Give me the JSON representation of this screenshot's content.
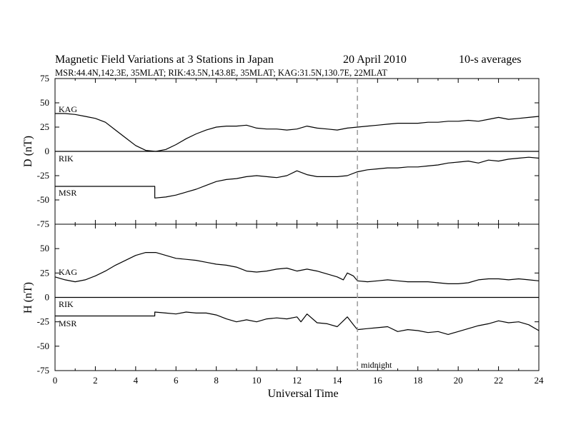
{
  "header": {
    "title": "Magnetic Field Variations at 3 Stations in Japan",
    "date": "20 April    2010",
    "averaging": "10-s averages",
    "stations_line": "MSR:44.4N,142.3E, 35MLAT;  RIK:43.5N,143.8E, 35MLAT;  KAG:31.5N,130.7E, 22MLAT"
  },
  "chart_data": [
    {
      "type": "line",
      "panel": "D",
      "ylabel": "D (nT)",
      "xlim": [
        0,
        24
      ],
      "ylim": [
        -75,
        75
      ],
      "yticks": [
        75,
        50,
        25,
        0,
        -25,
        -50,
        -75
      ],
      "ytick_labels": [
        "75",
        "50",
        "25",
        "0",
        "-25",
        "-50",
        "-75"
      ],
      "reference_line": 0,
      "series": [
        {
          "name": "KAG",
          "x": [
            0,
            0.5,
            1,
            1.5,
            2,
            2.5,
            3,
            3.5,
            4,
            4.5,
            5,
            5.5,
            6,
            6.5,
            7,
            7.5,
            8,
            8.5,
            9,
            9.5,
            10,
            10.5,
            11,
            11.5,
            12,
            12.5,
            13,
            13.5,
            14,
            14.5,
            15,
            15.5,
            16,
            16.5,
            17,
            17.5,
            18,
            18.5,
            19,
            19.5,
            20,
            20.5,
            21,
            21.5,
            22,
            22.5,
            23,
            23.5,
            24
          ],
          "y": [
            39,
            39,
            38,
            36,
            34,
            30,
            22,
            14,
            6,
            1,
            0,
            2,
            7,
            13,
            18,
            22,
            25,
            26,
            26,
            27,
            24,
            23,
            23,
            22,
            23,
            26,
            24,
            23,
            22,
            24,
            25,
            26,
            27,
            28,
            29,
            29,
            29,
            30,
            30,
            31,
            31,
            32,
            31,
            33,
            35,
            33,
            34,
            35,
            36
          ]
        },
        {
          "name": "RIK",
          "x": [
            0,
            24
          ],
          "y": [
            0,
            0
          ]
        },
        {
          "name": "MSR",
          "x": [
            0,
            4.95,
            4.95,
            5.5,
            6,
            6.5,
            7,
            7.5,
            8,
            8.5,
            9,
            9.5,
            10,
            10.5,
            11,
            11.5,
            12,
            12.5,
            13,
            13.5,
            14,
            14.5,
            15,
            15.5,
            16,
            16.5,
            17,
            17.5,
            18,
            18.5,
            19,
            19.5,
            20,
            20.5,
            21,
            21.5,
            22,
            22.5,
            23,
            23.5,
            24
          ],
          "y": [
            -36,
            -36,
            -48,
            -47,
            -45,
            -42,
            -39,
            -35,
            -31,
            -29,
            -28,
            -26,
            -25,
            -26,
            -27,
            -25,
            -20,
            -24,
            -26,
            -26,
            -26,
            -25,
            -21,
            -19,
            -18,
            -17,
            -17,
            -16,
            -16,
            -15,
            -14,
            -12,
            -11,
            -10,
            -12,
            -9,
            -10,
            -8,
            -7,
            -6,
            -7
          ]
        }
      ]
    },
    {
      "type": "line",
      "panel": "H",
      "ylabel": "H (nT)",
      "xlabel": "Universal Time",
      "xlim": [
        0,
        24
      ],
      "ylim": [
        -75,
        75
      ],
      "xticks": [
        0,
        2,
        4,
        6,
        8,
        10,
        12,
        14,
        16,
        18,
        20,
        22,
        24
      ],
      "xtick_labels": [
        "0",
        "2",
        "4",
        "6",
        "8",
        "10",
        "12",
        "14",
        "16",
        "18",
        "20",
        "22",
        "24"
      ],
      "yticks": [
        50,
        25,
        0,
        -25,
        -50,
        -75
      ],
      "ytick_labels": [
        "50",
        "25",
        "0",
        "-25",
        "-50",
        "-75"
      ],
      "reference_line": 0,
      "series": [
        {
          "name": "KAG",
          "x": [
            0,
            0.5,
            1,
            1.5,
            2,
            2.5,
            3,
            3.5,
            4,
            4.5,
            5,
            5.5,
            6,
            6.5,
            7,
            7.5,
            8,
            8.5,
            9,
            9.5,
            10,
            10.5,
            11,
            11.5,
            12,
            12.5,
            13,
            13.5,
            14,
            14.3,
            14.5,
            14.8,
            15,
            15.5,
            16,
            16.5,
            17,
            17.5,
            18,
            18.5,
            19,
            19.5,
            20,
            20.5,
            21,
            21.5,
            22,
            22.5,
            23,
            23.5,
            24
          ],
          "y": [
            21,
            18,
            16,
            18,
            22,
            27,
            33,
            38,
            43,
            46,
            46,
            43,
            40,
            39,
            38,
            36,
            34,
            33,
            31,
            27,
            26,
            27,
            29,
            30,
            27,
            29,
            27,
            24,
            21,
            18,
            25,
            22,
            17,
            16,
            17,
            18,
            17,
            16,
            16,
            16,
            15,
            14,
            14,
            15,
            18,
            19,
            19,
            18,
            19,
            18,
            17
          ]
        },
        {
          "name": "RIK",
          "x": [
            0,
            24
          ],
          "y": [
            0,
            0
          ]
        },
        {
          "name": "MSR",
          "x": [
            0,
            4.95,
            4.95,
            5.5,
            6,
            6.5,
            7,
            7.5,
            8,
            8.5,
            9,
            9.5,
            10,
            10.5,
            11,
            11.5,
            12,
            12.2,
            12.5,
            13,
            13.5,
            14,
            14.3,
            14.5,
            14.8,
            15,
            15.5,
            16,
            16.5,
            17,
            17.5,
            18,
            18.5,
            19,
            19.5,
            20,
            20.5,
            21,
            21.5,
            22,
            22.5,
            23,
            23.5,
            24
          ],
          "y": [
            -19,
            -19,
            -15,
            -16,
            -17,
            -15,
            -16,
            -16,
            -18,
            -22,
            -25,
            -23,
            -25,
            -22,
            -21,
            -22,
            -20,
            -25,
            -17,
            -26,
            -27,
            -30,
            -24,
            -20,
            -28,
            -33,
            -32,
            -31,
            -30,
            -35,
            -33,
            -34,
            -36,
            -35,
            -38,
            -35,
            -32,
            -29,
            -27,
            -24,
            -26,
            -25,
            -28,
            -34
          ]
        }
      ]
    }
  ],
  "annotations": {
    "midnight_x": 15,
    "midnight_label": "midnight",
    "station_labels": {
      "d_kag": "KAG",
      "d_rik": "RIK",
      "d_msr": "MSR",
      "h_kag": "KAG",
      "h_rik": "RIK",
      "h_msr": "MSR"
    }
  }
}
